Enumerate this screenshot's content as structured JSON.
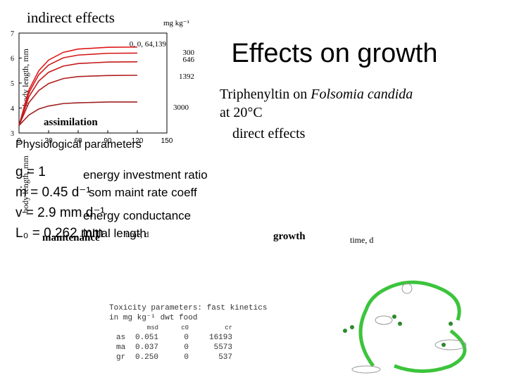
{
  "slide": {
    "indirect_label": "indirect effects",
    "unit_label": "mg kg⁻¹",
    "title": "Effects on growth",
    "subtitle_prefix": "Triphenyltin on ",
    "subtitle_species": "Folsomia candida",
    "subtitle_temp": "at 20°C",
    "direct_label": "direct effects",
    "assimilation": "assimilation",
    "maintenance": "maintenance",
    "growth": "growth",
    "time_label_left": "time, d",
    "time_label_right": "time, d",
    "lower_ylabel": "body length, mm",
    "params_title": "Physiological parameters",
    "params": [
      {
        "symbol": "g = 1",
        "desc": "energy investment ratio"
      },
      {
        "symbol": "ṁ = 0.45 d⁻¹",
        "desc": "som maint rate coeff"
      },
      {
        "symbol": "v = 2.9 mm d⁻¹",
        "desc": "energy conductance"
      },
      {
        "symbol": "L₀ = 0.262 mm",
        "desc": "initial length"
      }
    ],
    "tox_title": "Toxicity parameters: fast kinetics",
    "tox_subtitle": "in mg kg⁻¹ dwt food",
    "tox_header": [
      "msd",
      "c0",
      "cr"
    ],
    "tox_rows": [
      [
        "as",
        "0.051",
        "0",
        "16193"
      ],
      [
        "ma",
        "0.037",
        "0",
        "5573"
      ],
      [
        "gr",
        "0.250",
        "0",
        "537"
      ]
    ]
  },
  "chart_data": {
    "type": "line",
    "ylabel": "body length, mm",
    "x": [
      0,
      10,
      20,
      30,
      45,
      60,
      90,
      120
    ],
    "xlim": [
      0,
      150
    ],
    "ylim": [
      3,
      7
    ],
    "xticks": [
      0,
      30,
      60,
      90,
      120,
      150
    ],
    "yticks": [
      3,
      4,
      5,
      6,
      7
    ],
    "series": [
      {
        "name": "0, 0, 64,139",
        "color": "#e01818",
        "values": [
          3.3,
          4.72,
          5.49,
          5.92,
          6.23,
          6.36,
          6.43,
          6.44
        ]
      },
      {
        "name": "300",
        "color": "#d41a1a",
        "values": [
          3.3,
          4.61,
          5.33,
          5.72,
          6.01,
          6.12,
          6.19,
          6.2
        ]
      },
      {
        "name": "646",
        "color": "#c41c1c",
        "values": [
          3.3,
          4.45,
          5.08,
          5.43,
          5.68,
          5.78,
          5.84,
          5.85
        ]
      },
      {
        "name": "1392",
        "color": "#b01e1e",
        "values": [
          3.3,
          4.21,
          4.7,
          4.98,
          5.18,
          5.26,
          5.3,
          5.31
        ]
      },
      {
        "name": "3000",
        "color": "#a02020",
        "values": [
          3.3,
          3.72,
          3.96,
          4.08,
          4.18,
          4.21,
          4.24,
          4.24
        ]
      }
    ]
  }
}
